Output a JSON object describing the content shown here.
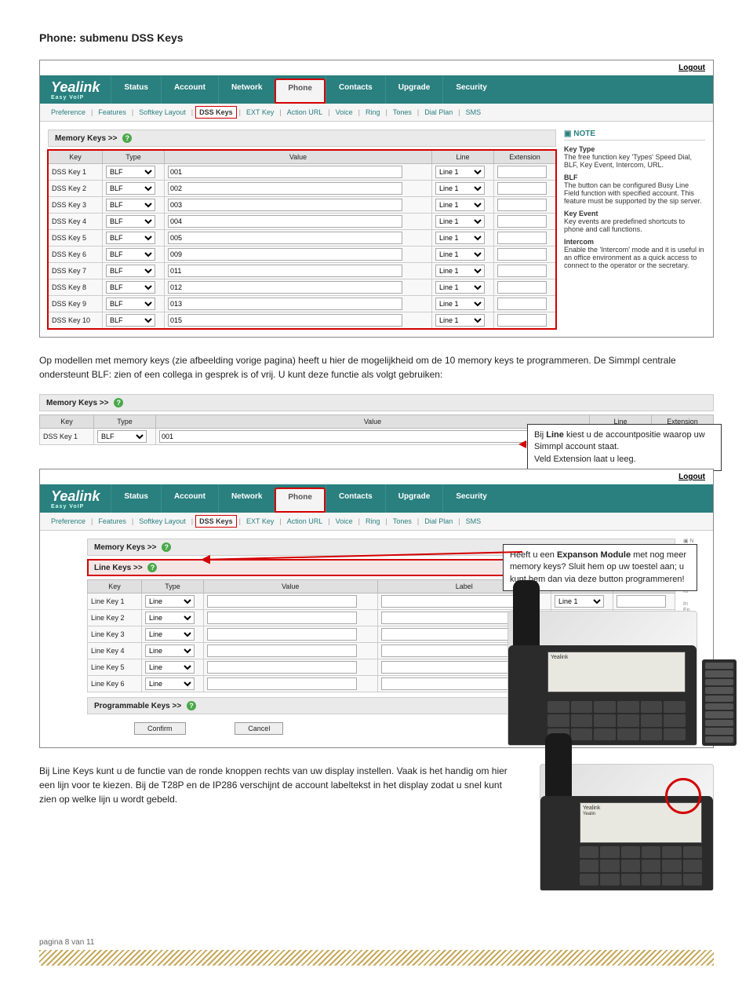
{
  "page": {
    "title": "Phone: submenu DSS Keys",
    "intro": "Op modellen met memory keys (zie afbeelding vorige pagina) heeft u hier de mogelijkheid om de 10 memory keys te programmeren. De Simmpl centrale ondersteunt BLF: zien of een collega in gesprek is of vrij. U kunt deze functie als volgt gebruiken:",
    "footer": "pagina 8 van 11"
  },
  "admin": {
    "logout": "Logout",
    "logo": "Yealink",
    "logo_sub": "Easy VoIP",
    "tabs": [
      "Status",
      "Account",
      "Network",
      "Phone",
      "Contacts",
      "Upgrade",
      "Security"
    ],
    "active_tab": "Phone",
    "subtabs": [
      "Preference",
      "Features",
      "Softkey Layout",
      "DSS Keys",
      "EXT Key",
      "Action URL",
      "Voice",
      "Ring",
      "Tones",
      "Dial Plan",
      "SMS"
    ],
    "active_subtab": "DSS Keys",
    "note_head": "NOTE",
    "notes": [
      {
        "title": "Key Type",
        "body": "The free function key 'Types' Speed Dial, BLF, Key Event, Intercom, URL."
      },
      {
        "title": "BLF",
        "body": "The button can be configured Busy Line Field function with specified account. This feature must be supported by the sip server."
      },
      {
        "title": "Key Event",
        "body": "Key events are predefined shortcuts to phone and call functions."
      },
      {
        "title": "Intercom",
        "body": "Enable the 'Intercom' mode and it is useful in an office environment as a quick access to connect to the operator or the secretary."
      }
    ]
  },
  "memory": {
    "section_title": "Memory Keys >>",
    "columns": [
      "Key",
      "Type",
      "Value",
      "Line",
      "Extension"
    ],
    "type_option": "BLF",
    "line_option": "Line 1",
    "rows": [
      {
        "key": "DSS Key 1",
        "value": "001"
      },
      {
        "key": "DSS Key 2",
        "value": "002"
      },
      {
        "key": "DSS Key 3",
        "value": "003"
      },
      {
        "key": "DSS Key 4",
        "value": "004"
      },
      {
        "key": "DSS Key 5",
        "value": "005"
      },
      {
        "key": "DSS Key 6",
        "value": "009"
      },
      {
        "key": "DSS Key 7",
        "value": "011"
      },
      {
        "key": "DSS Key 8",
        "value": "012"
      },
      {
        "key": "DSS Key 9",
        "value": "013"
      },
      {
        "key": "DSS Key 10",
        "value": "015"
      }
    ]
  },
  "callout1": {
    "line1": "Bij Line kiest u de accountpositie waarop uw Simmpl account staat.",
    "line2": "Veld Extension laat u leeg.",
    "bold": "Line"
  },
  "memory_single": {
    "columns": [
      "Key",
      "Type",
      "Value",
      "Line",
      "Extension"
    ],
    "row": {
      "key": "DSS Key 1",
      "value": "001"
    }
  },
  "linekeys": {
    "mem_title": "Memory Keys >>",
    "line_title": "Line Keys >>",
    "prog_title": "Programmable Keys >>",
    "columns": [
      "Key",
      "Type",
      "Value",
      "Label",
      "Line",
      "Extension"
    ],
    "type_option": "Line",
    "line_option": "Line 1",
    "rows": [
      {
        "key": "Line Key 1"
      },
      {
        "key": "Line Key 2"
      },
      {
        "key": "Line Key 3"
      },
      {
        "key": "Line Key 4"
      },
      {
        "key": "Line Key 5"
      },
      {
        "key": "Line Key 6"
      }
    ],
    "confirm": "Confirm",
    "cancel": "Cancel"
  },
  "callout2": {
    "text": "Heeft u een Expanson Module met nog meer memory keys? Sluit hem op uw toestel aan; u kunt hem dan via deze button programmeren!",
    "bold": "Expanson Module"
  },
  "bottom_text": "Bij Line Keys kunt u de functie van de ronde knoppen rechts van uw display instellen. Vaak is het handig om hier een lijn voor te kiezen. Bij de T28P en de IP286 verschijnt de account labeltekst in het display zodat u snel kunt zien op welke lijn u wordt gebeld.",
  "colors": {
    "teal": "#2a7f7f",
    "highlight": "#d40000"
  }
}
